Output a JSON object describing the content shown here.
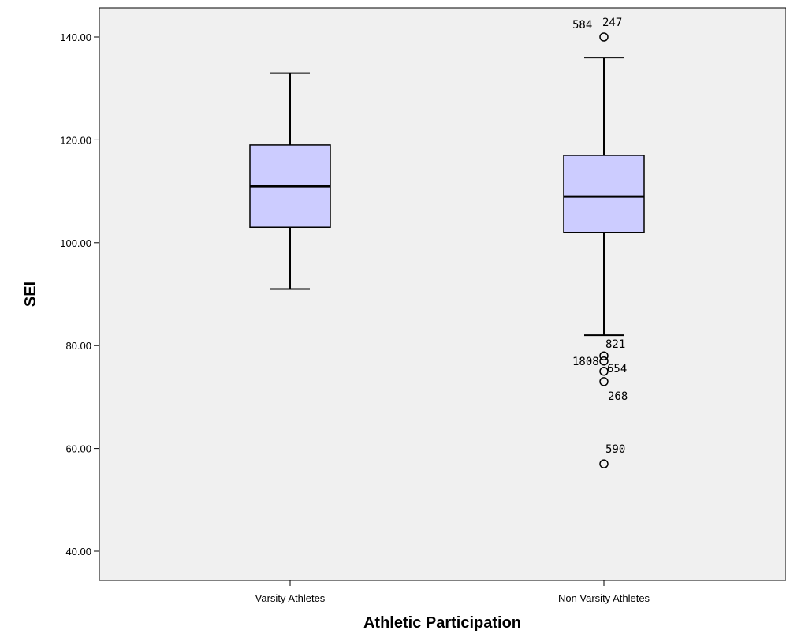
{
  "chart_data": {
    "type": "boxplot",
    "xlabel": "Athletic Participation",
    "ylabel": "SEI",
    "ylim": [
      35,
      146
    ],
    "yticks": [
      "40.00",
      "60.00",
      "80.00",
      "100.00",
      "120.00",
      "140.00"
    ],
    "ytick_values": [
      40,
      60,
      80,
      100,
      120,
      140
    ],
    "grid": false,
    "colors": {
      "plot_bg": "#f0f0f0",
      "box_fill": "#ccccff",
      "stroke": "#000000"
    },
    "categories": [
      "Varsity Athletes",
      "Non Varsity Athletes"
    ],
    "boxes": [
      {
        "category": "Varsity Athletes",
        "whisker_low": 91,
        "q1": 103,
        "median": 111,
        "q3": 119,
        "whisker_high": 133,
        "outliers": []
      },
      {
        "category": "Non Varsity Athletes",
        "whisker_low": 82,
        "q1": 102,
        "median": 109,
        "q3": 117,
        "whisker_high": 136,
        "outliers": [
          {
            "value": 140,
            "labels": [
              "584",
              "247"
            ]
          },
          {
            "value": 78,
            "labels": [
              "821"
            ]
          },
          {
            "value": 77,
            "labels": [
              "1808"
            ]
          },
          {
            "value": 75,
            "labels": [
              "654"
            ]
          },
          {
            "value": 73,
            "labels": [
              "268"
            ]
          },
          {
            "value": 57,
            "labels": [
              "590"
            ]
          }
        ]
      }
    ]
  }
}
